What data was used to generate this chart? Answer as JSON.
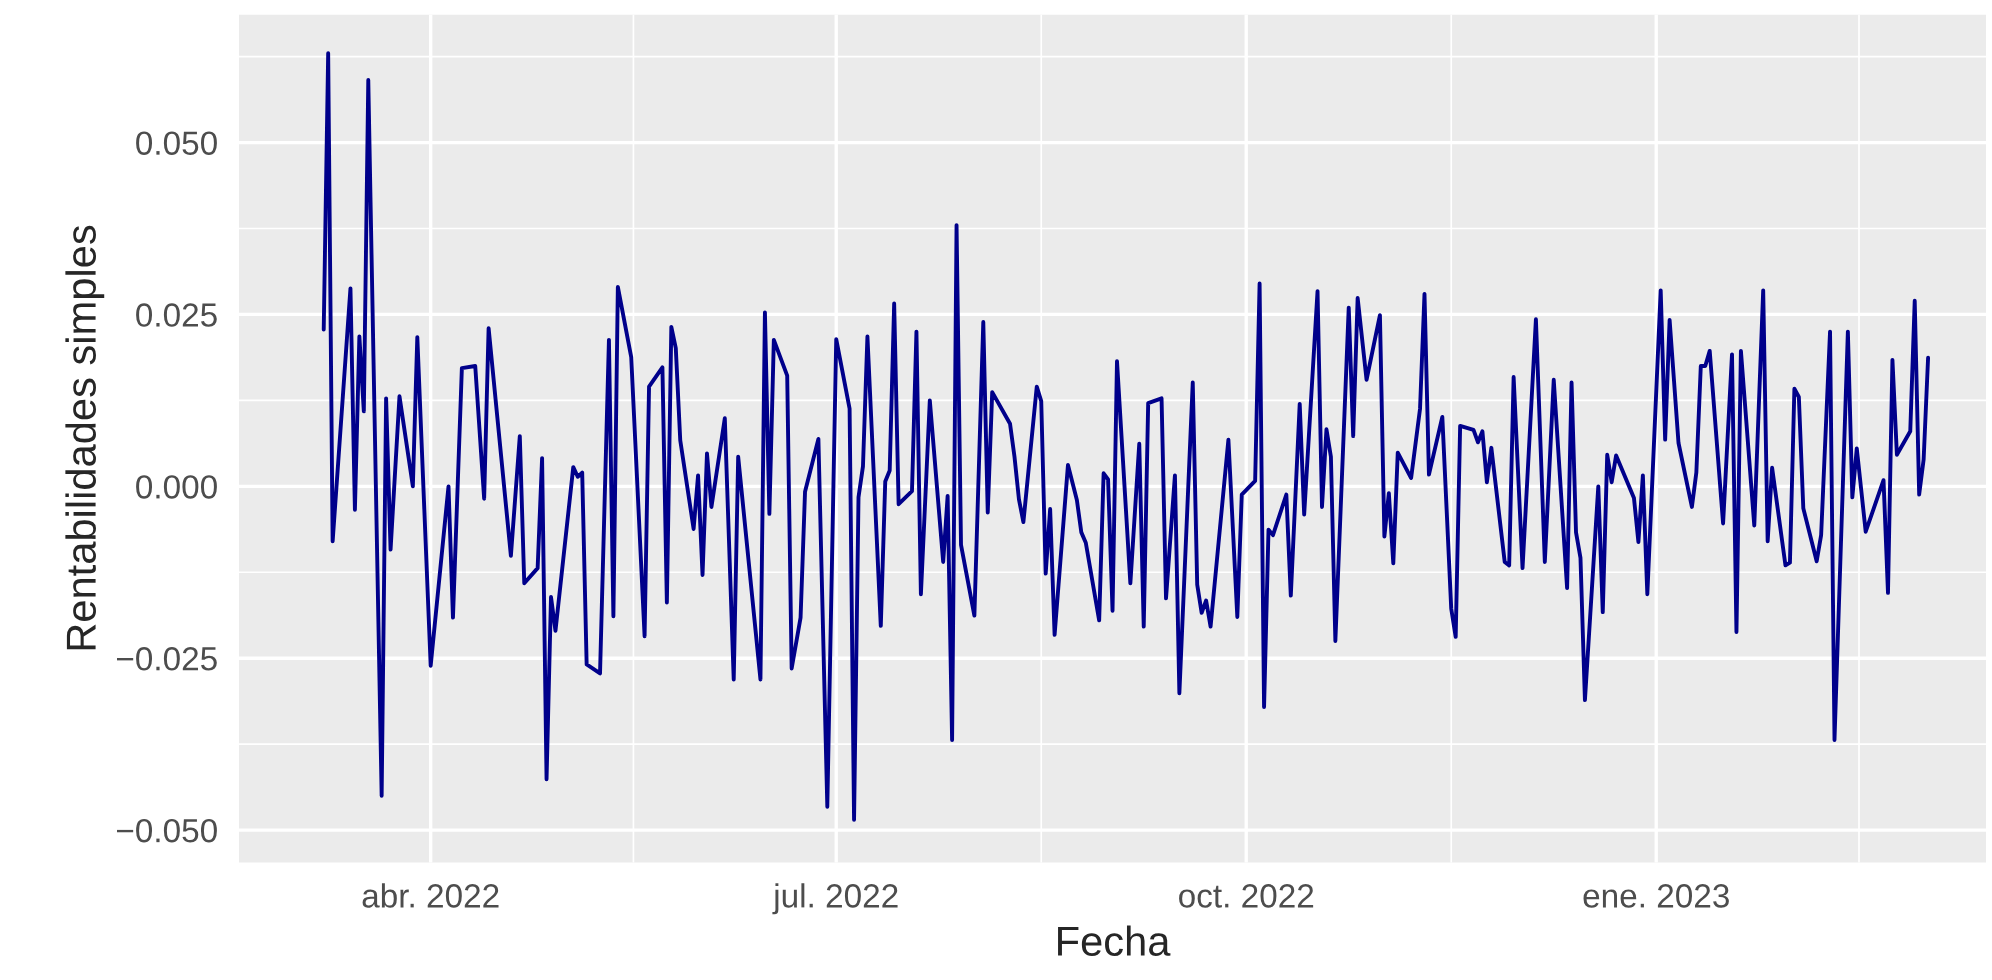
{
  "chart_data": {
    "type": "line",
    "xlabel": "Fecha",
    "ylabel": "Rentabilidades simples",
    "grid": true,
    "xlim": [
      "2022-02-17",
      "2023-03-16"
    ],
    "ylim": [
      -0.0547,
      0.0686
    ],
    "xticks": [
      {
        "value": "2022-04-01",
        "label": "abr. 2022"
      },
      {
        "value": "2022-07-01",
        "label": "jul. 2022"
      },
      {
        "value": "2022-10-01",
        "label": "oct. 2022"
      },
      {
        "value": "2023-01-01",
        "label": "ene. 2023"
      }
    ],
    "yticks": [
      {
        "value": 0.05,
        "label": "0.050"
      },
      {
        "value": 0.025,
        "label": "0.025"
      },
      {
        "value": 0.0,
        "label": "0.000"
      },
      {
        "value": -0.025,
        "label": "−0.025"
      },
      {
        "value": -0.05,
        "label": "−0.050"
      }
    ],
    "x": [
      "2022-03-08",
      "2022-03-09",
      "2022-03-10",
      "2022-03-14",
      "2022-03-15",
      "2022-03-16",
      "2022-03-17",
      "2022-03-18",
      "2022-03-21",
      "2022-03-22",
      "2022-03-23",
      "2022-03-25",
      "2022-03-28",
      "2022-03-29",
      "2022-04-01",
      "2022-04-05",
      "2022-04-06",
      "2022-04-08",
      "2022-04-11",
      "2022-04-13",
      "2022-04-14",
      "2022-04-19",
      "2022-04-21",
      "2022-04-22",
      "2022-04-25",
      "2022-04-26",
      "2022-04-27",
      "2022-04-28",
      "2022-04-29",
      "2022-05-03",
      "2022-05-04",
      "2022-05-05",
      "2022-05-06",
      "2022-05-09",
      "2022-05-11",
      "2022-05-12",
      "2022-05-13",
      "2022-05-16",
      "2022-05-19",
      "2022-05-20",
      "2022-05-23",
      "2022-05-24",
      "2022-05-25",
      "2022-05-26",
      "2022-05-27",
      "2022-05-30",
      "2022-05-31",
      "2022-06-01",
      "2022-06-02",
      "2022-06-03",
      "2022-06-06",
      "2022-06-08",
      "2022-06-09",
      "2022-06-14",
      "2022-06-15",
      "2022-06-16",
      "2022-06-17",
      "2022-06-20",
      "2022-06-21",
      "2022-06-23",
      "2022-06-24",
      "2022-06-27",
      "2022-06-29",
      "2022-07-01",
      "2022-07-04",
      "2022-07-05",
      "2022-07-06",
      "2022-07-07",
      "2022-07-08",
      "2022-07-11",
      "2022-07-12",
      "2022-07-13",
      "2022-07-14",
      "2022-07-15",
      "2022-07-18",
      "2022-07-19",
      "2022-07-20",
      "2022-07-22",
      "2022-07-25",
      "2022-07-26",
      "2022-07-27",
      "2022-07-28",
      "2022-07-29",
      "2022-08-01",
      "2022-08-03",
      "2022-08-04",
      "2022-08-05",
      "2022-08-09",
      "2022-08-10",
      "2022-08-11",
      "2022-08-12",
      "2022-08-15",
      "2022-08-16",
      "2022-08-17",
      "2022-08-18",
      "2022-08-19",
      "2022-08-22",
      "2022-08-24",
      "2022-08-25",
      "2022-08-26",
      "2022-08-29",
      "2022-08-30",
      "2022-08-31",
      "2022-09-01",
      "2022-09-02",
      "2022-09-05",
      "2022-09-07",
      "2022-09-08",
      "2022-09-09",
      "2022-09-12",
      "2022-09-13",
      "2022-09-15",
      "2022-09-16",
      "2022-09-19",
      "2022-09-20",
      "2022-09-21",
      "2022-09-22",
      "2022-09-23",
      "2022-09-27",
      "2022-09-29",
      "2022-09-30",
      "2022-10-03",
      "2022-10-04",
      "2022-10-05",
      "2022-10-06",
      "2022-10-07",
      "2022-10-10",
      "2022-10-11",
      "2022-10-13",
      "2022-10-14",
      "2022-10-17",
      "2022-10-18",
      "2022-10-19",
      "2022-10-20",
      "2022-10-21",
      "2022-10-24",
      "2022-10-25",
      "2022-10-26",
      "2022-10-28",
      "2022-10-31",
      "2022-11-01",
      "2022-11-02",
      "2022-11-03",
      "2022-11-04",
      "2022-11-07",
      "2022-11-09",
      "2022-11-10",
      "2022-11-11",
      "2022-11-14",
      "2022-11-16",
      "2022-11-17",
      "2022-11-18",
      "2022-11-21",
      "2022-11-22",
      "2022-11-23",
      "2022-11-24",
      "2022-11-25",
      "2022-11-28",
      "2022-11-29",
      "2022-11-30",
      "2022-12-02",
      "2022-12-05",
      "2022-12-07",
      "2022-12-09",
      "2022-12-12",
      "2022-12-13",
      "2022-12-14",
      "2022-12-15",
      "2022-12-16",
      "2022-12-19",
      "2022-12-20",
      "2022-12-21",
      "2022-12-22",
      "2022-12-23",
      "2022-12-27",
      "2022-12-28",
      "2022-12-29",
      "2022-12-30",
      "2023-01-02",
      "2023-01-03",
      "2023-01-04",
      "2023-01-06",
      "2023-01-09",
      "2023-01-10",
      "2023-01-11",
      "2023-01-12",
      "2023-01-13",
      "2023-01-16",
      "2023-01-18",
      "2023-01-19",
      "2023-01-20",
      "2023-01-23",
      "2023-01-25",
      "2023-01-26",
      "2023-01-27",
      "2023-01-30",
      "2023-01-31",
      "2023-02-01",
      "2023-02-02",
      "2023-02-03",
      "2023-02-06",
      "2023-02-07",
      "2023-02-09",
      "2023-02-10",
      "2023-02-13",
      "2023-02-14",
      "2023-02-15",
      "2023-02-17",
      "2023-02-21",
      "2023-02-22",
      "2023-02-23",
      "2023-02-24",
      "2023-02-27",
      "2023-02-28",
      "2023-03-01",
      "2023-03-02",
      "2023-03-03"
    ],
    "series": [
      {
        "color": "#00008b",
        "values": [
          0.0228,
          0.063,
          -0.008,
          0.0288,
          -0.0034,
          0.0218,
          0.0109,
          0.0591,
          -0.045,
          0.0128,
          -0.0092,
          0.0131,
          0.0,
          0.0217,
          -0.0261,
          0.0,
          -0.0191,
          0.0172,
          0.0175,
          -0.0018,
          0.023,
          -0.0101,
          0.0073,
          -0.0141,
          -0.0119,
          0.0041,
          -0.0426,
          -0.0161,
          -0.021,
          0.0028,
          0.0014,
          0.002,
          -0.0259,
          -0.0272,
          0.0213,
          -0.0189,
          0.029,
          0.0188,
          -0.0218,
          0.0145,
          0.0173,
          -0.0169,
          0.0232,
          0.0201,
          0.0067,
          -0.0062,
          0.0016,
          -0.0129,
          0.0048,
          -0.003,
          0.0099,
          -0.0281,
          0.0043,
          -0.0281,
          0.0253,
          -0.004,
          0.0213,
          0.0161,
          -0.0265,
          -0.0191,
          -0.0008,
          0.0069,
          -0.0466,
          0.0214,
          0.0113,
          -0.0485,
          -0.0016,
          0.0029,
          0.0218,
          -0.0203,
          0.0007,
          0.0023,
          0.0266,
          -0.0026,
          -0.0007,
          0.0225,
          -0.0157,
          0.0125,
          -0.011,
          -0.0014,
          -0.0369,
          0.038,
          -0.0085,
          -0.0188,
          0.0239,
          -0.0038,
          0.0137,
          0.0091,
          0.0043,
          -0.0019,
          -0.0052,
          0.0145,
          0.0124,
          -0.0127,
          -0.0033,
          -0.0216,
          0.0031,
          -0.002,
          -0.0067,
          -0.0082,
          -0.0195,
          0.0019,
          0.001,
          -0.0181,
          0.0182,
          -0.0141,
          0.0062,
          -0.0204,
          0.0121,
          0.0128,
          -0.0163,
          0.0016,
          -0.0301,
          0.0151,
          -0.0143,
          -0.0184,
          -0.0166,
          -0.0204,
          0.0068,
          -0.019,
          -0.0012,
          0.0008,
          0.0295,
          -0.0321,
          -0.0063,
          -0.0071,
          -0.0012,
          -0.0159,
          0.012,
          -0.0041,
          0.0284,
          -0.003,
          0.0083,
          0.0043,
          -0.0225,
          0.026,
          0.0073,
          0.0274,
          0.0155,
          0.0249,
          -0.0073,
          -0.001,
          -0.0112,
          0.0049,
          0.0012,
          0.0113,
          0.028,
          0.0017,
          0.0101,
          -0.0178,
          -0.0219,
          0.0088,
          0.0082,
          0.0064,
          0.008,
          0.0006,
          0.0056,
          -0.011,
          -0.0115,
          0.0159,
          -0.0119,
          0.0243,
          -0.011,
          0.0155,
          -0.0148,
          0.0151,
          -0.0067,
          -0.0104,
          -0.0311,
          0.0,
          -0.0183,
          0.0046,
          0.0006,
          0.0045,
          -0.0017,
          -0.0081,
          0.0016,
          -0.0157,
          0.0285,
          0.0068,
          0.0242,
          0.0063,
          -0.003,
          0.002,
          0.0175,
          0.0175,
          0.0197,
          -0.0054,
          0.0192,
          -0.0212,
          0.0197,
          -0.0057,
          0.0285,
          -0.008,
          0.0027,
          -0.0115,
          -0.0111,
          0.0142,
          0.013,
          -0.0032,
          -0.0109,
          -0.0071,
          0.0225,
          -0.0369,
          0.0225,
          -0.0016,
          0.0055,
          -0.0066,
          0.0009,
          -0.0155,
          0.0184,
          0.0046,
          0.008,
          0.027,
          -0.0012,
          0.0039,
          0.0187
        ]
      }
    ]
  }
}
